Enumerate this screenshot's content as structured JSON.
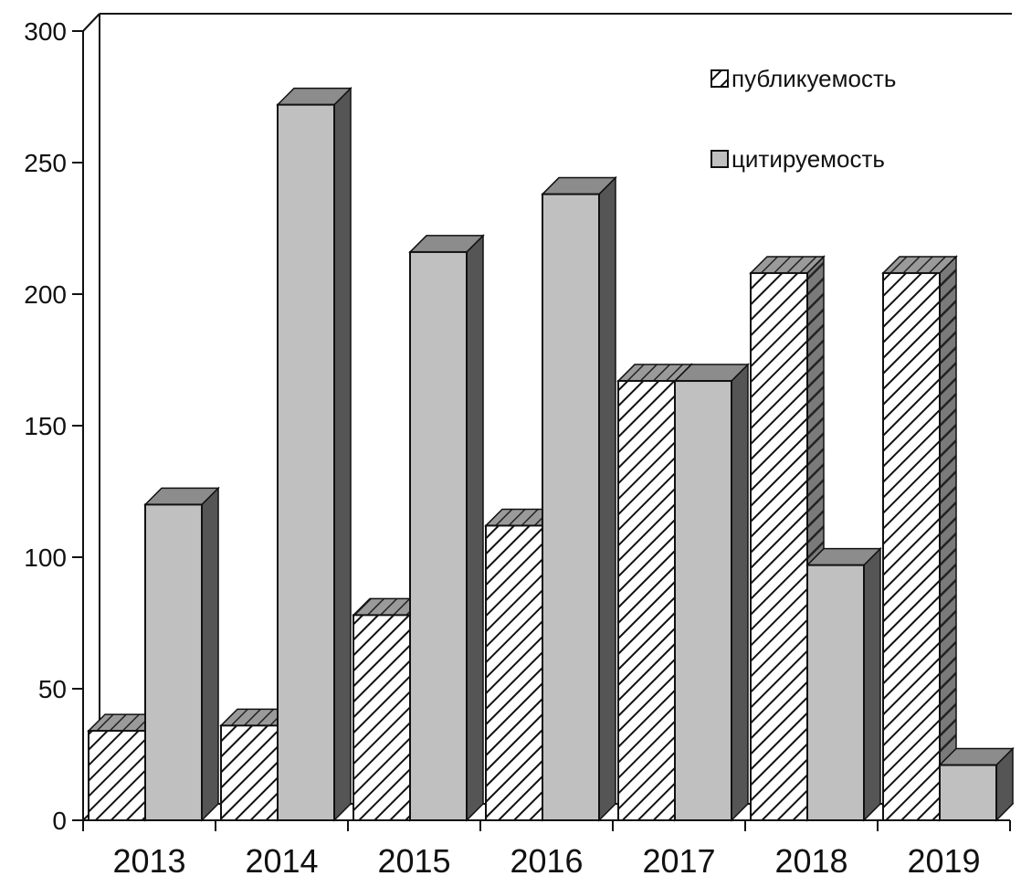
{
  "chart_data": {
    "type": "bar",
    "title": "",
    "xlabel": "",
    "ylabel": "",
    "categories": [
      "2013",
      "2014",
      "2015",
      "2016",
      "2017",
      "2018",
      "2019"
    ],
    "series": [
      {
        "name": "публикуемость",
        "values": [
          34,
          36,
          78,
          112,
          167,
          208,
          208
        ],
        "fill": "hatched",
        "color": "#111111"
      },
      {
        "name": "цитируемость",
        "values": [
          120,
          272,
          216,
          238,
          167,
          97,
          21
        ],
        "fill": "solid",
        "color": "#c0c0c0"
      }
    ],
    "ylim": [
      0,
      300
    ],
    "yticks": [
      "0",
      "50",
      "100",
      "150",
      "200",
      "250",
      "300"
    ],
    "grid": false,
    "legend_position": "top-right",
    "style": "3d-column"
  }
}
